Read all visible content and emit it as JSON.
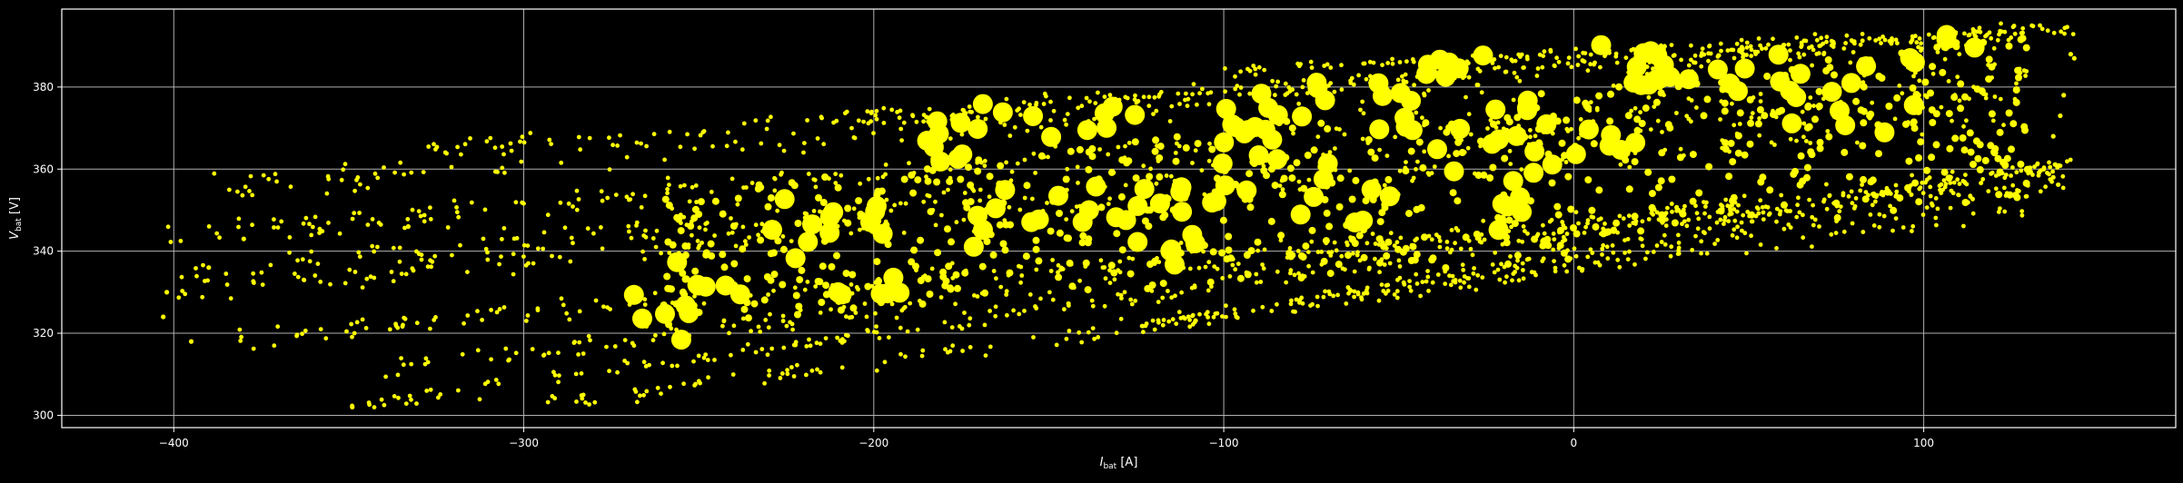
{
  "chart_data": {
    "type": "scatter",
    "title": "",
    "xlabel": {
      "main": "I",
      "sub": "bat",
      "unit": " [A]"
    },
    "ylabel": {
      "main": "V",
      "sub": "bat",
      "unit": " [V]"
    },
    "xlim": [
      -432,
      172
    ],
    "ylim": [
      297,
      399
    ],
    "xticks": [
      -400,
      -300,
      -200,
      -100,
      0,
      100
    ],
    "yticks": [
      300,
      320,
      340,
      360,
      380
    ],
    "xtick_labels": [
      "−400",
      "−300",
      "−200",
      "−100",
      "0",
      "100"
    ],
    "ytick_labels": [
      "300",
      "320",
      "340",
      "360",
      "380"
    ],
    "grid": true,
    "background": "#000000",
    "point_color": "#ffff00",
    "grid_color": "#b0b0b0",
    "series": [
      {
        "bands": [
          {
            "x0": -404,
            "x1": 130,
            "v0": 343,
            "v1": 384,
            "spread": 2.4,
            "n": 220
          },
          {
            "x0": -398,
            "x1": 128,
            "v0": 334,
            "v1": 379,
            "spread": 2.5,
            "n": 220
          },
          {
            "x0": -400,
            "x1": 125,
            "v0": 330,
            "v1": 372,
            "spread": 2.0,
            "n": 180
          },
          {
            "x0": -397,
            "x1": 140,
            "v0": 318,
            "v1": 357,
            "spread": 1.8,
            "n": 220
          },
          {
            "x0": -390,
            "x1": 122,
            "v0": 355,
            "v1": 391,
            "spread": 2.5,
            "n": 200
          },
          {
            "x0": -340,
            "x1": 140,
            "v0": 311,
            "v1": 361,
            "spread": 1.8,
            "n": 220
          },
          {
            "x0": -350,
            "x1": 145,
            "v0": 302,
            "v1": 361,
            "spread": 1.3,
            "n": 240
          },
          {
            "x0": -300,
            "x1": 130,
            "v0": 302,
            "v1": 350,
            "spread": 1.5,
            "n": 160
          },
          {
            "x0": -330,
            "x1": 130,
            "v0": 365,
            "v1": 394,
            "spread": 1.5,
            "n": 160
          },
          {
            "x0": -200,
            "x1": 140,
            "v0": 372,
            "v1": 395,
            "spread": 1.5,
            "n": 160
          },
          {
            "x0": -100,
            "x1": 143,
            "v0": 384,
            "v1": 394,
            "spread": 1.0,
            "n": 120
          },
          {
            "x0": -120,
            "x1": 140,
            "v0": 322,
            "v1": 361,
            "spread": 1.2,
            "n": 140
          },
          {
            "x0": -140,
            "x1": 140,
            "v0": 319,
            "v1": 356,
            "spread": 1.2,
            "n": 120
          }
        ],
        "dense_core": [
          {
            "x": -260,
            "v": 324
          },
          {
            "x": -240,
            "v": 332
          },
          {
            "x": -220,
            "v": 344
          },
          {
            "x": -200,
            "v": 330
          },
          {
            "x": -180,
            "v": 366
          },
          {
            "x": -160,
            "v": 376
          },
          {
            "x": -140,
            "v": 370
          },
          {
            "x": -120,
            "v": 340
          },
          {
            "x": -100,
            "v": 352
          },
          {
            "x": -80,
            "v": 372
          },
          {
            "x": -60,
            "v": 380
          },
          {
            "x": -40,
            "v": 386
          },
          {
            "x": -20,
            "v": 366
          },
          {
            "x": 0,
            "v": 360
          },
          {
            "x": 20,
            "v": 378
          },
          {
            "x": 40,
            "v": 386
          },
          {
            "x": 60,
            "v": 380
          },
          {
            "x": 80,
            "v": 372
          },
          {
            "x": -200,
            "v": 350
          },
          {
            "x": -160,
            "v": 344
          },
          {
            "x": -120,
            "v": 356
          },
          {
            "x": -80,
            "v": 362
          },
          {
            "x": -40,
            "v": 370
          },
          {
            "x": -60,
            "v": 350
          },
          {
            "x": -100,
            "v": 372
          },
          {
            "x": -140,
            "v": 352
          },
          {
            "x": -20,
            "v": 350
          },
          {
            "x": 0,
            "v": 372
          },
          {
            "x": 20,
            "v": 388
          },
          {
            "x": 100,
            "v": 388
          }
        ],
        "outliers": [
          {
            "x": 142,
            "v": 388
          },
          {
            "x": 143,
            "v": 387
          },
          {
            "x": 140,
            "v": 378
          },
          {
            "x": 139,
            "v": 373
          },
          {
            "x": 137,
            "v": 368
          },
          {
            "x": 137,
            "v": 358
          },
          {
            "x": -402,
            "v": 330
          },
          {
            "x": -403,
            "v": 324
          },
          {
            "x": -395,
            "v": 318
          },
          {
            "x": -390,
            "v": 336
          },
          {
            "x": -380,
            "v": 343
          },
          {
            "x": -333,
            "v": 346
          },
          {
            "x": -349,
            "v": 302
          }
        ]
      }
    ]
  }
}
